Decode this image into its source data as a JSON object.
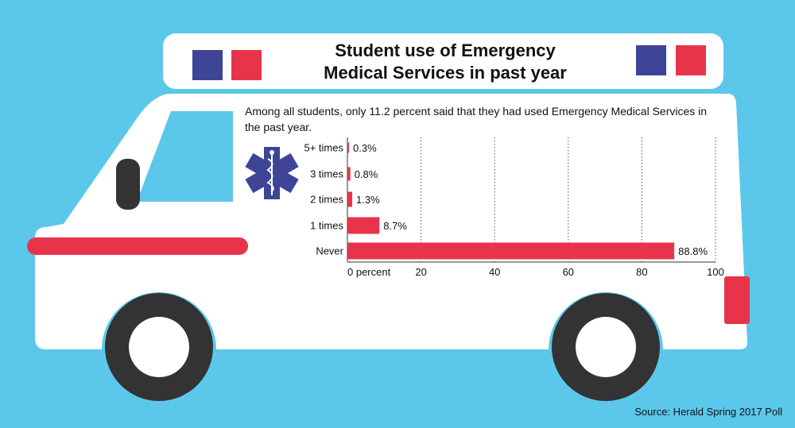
{
  "title_line1": "Student use of Emergency",
  "title_line2": "Medical Services in past year",
  "intro": "Among all students, only 11.2 percent said that they had used Emergency Medical Services in the past year.",
  "source": "Source: Herald Spring 2017 Poll",
  "colors": {
    "background": "#5bc8eb",
    "bar": "#e8344a",
    "light_blue": "#3e4597",
    "light_red": "#e8344a",
    "star_of_life": "#3e4597",
    "body": "#ffffff",
    "tire": "#333333"
  },
  "chart_data": {
    "type": "bar",
    "orientation": "horizontal",
    "title": "Student use of Emergency Medical Services in past year",
    "categories": [
      "5+ times",
      "3 times",
      "2 times",
      "1 times",
      "Never"
    ],
    "values": [
      0.3,
      0.8,
      1.3,
      8.7,
      88.8
    ],
    "value_labels": [
      "0.3%",
      "0.8%",
      "1.3%",
      "8.7%",
      "88.8%"
    ],
    "xlim": [
      0,
      100
    ],
    "xticks": [
      0,
      20,
      40,
      60,
      80,
      100
    ],
    "xtick_labels": [
      "0 percent",
      "20",
      "40",
      "60",
      "80",
      "100"
    ],
    "grid": "vertical dotted"
  }
}
